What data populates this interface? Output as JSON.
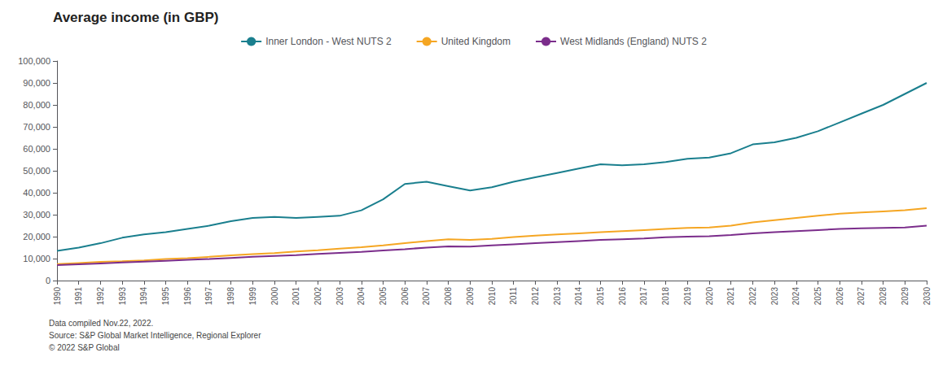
{
  "chart_data": {
    "type": "line",
    "title": "Average income (in GBP)",
    "x": [
      1990,
      1991,
      1992,
      1993,
      1994,
      1995,
      1996,
      1997,
      1998,
      1999,
      2000,
      2001,
      2002,
      2003,
      2004,
      2005,
      2006,
      2007,
      2008,
      2009,
      2010,
      2011,
      2012,
      2013,
      2014,
      2015,
      2016,
      2017,
      2018,
      2019,
      2020,
      2021,
      2022,
      2023,
      2024,
      2025,
      2026,
      2027,
      2028,
      2029,
      2030
    ],
    "xlim": [
      1990,
      2030
    ],
    "xticks": [
      1990,
      1991,
      1992,
      1993,
      1994,
      1995,
      1996,
      1997,
      1998,
      1999,
      2000,
      2001,
      2002,
      2003,
      2004,
      2005,
      2006,
      2007,
      2008,
      2009,
      2010,
      2011,
      2012,
      2013,
      2014,
      2015,
      2016,
      2017,
      2018,
      2019,
      2020,
      2021,
      2022,
      2023,
      2024,
      2025,
      2026,
      2027,
      2028,
      2029,
      2030
    ],
    "series": [
      {
        "name": "Inner London - West NUTS 2",
        "color": "#1a7f8e",
        "values": [
          13500,
          15000,
          17000,
          19500,
          21000,
          22000,
          23500,
          25000,
          27000,
          28500,
          29000,
          28500,
          29000,
          29500,
          32000,
          37000,
          44000,
          45000,
          43000,
          41000,
          42500,
          45000,
          47000,
          49000,
          51000,
          53000,
          52500,
          53000,
          54000,
          55500,
          56000,
          58000,
          62000,
          63000,
          65000,
          68000,
          72000,
          76000,
          80000,
          85000,
          90000
        ]
      },
      {
        "name": "United Kingdom",
        "color": "#f5a623",
        "values": [
          7500,
          8000,
          8500,
          8800,
          9200,
          9800,
          10200,
          10800,
          11500,
          12000,
          12500,
          13200,
          13800,
          14500,
          15200,
          16000,
          17000,
          18000,
          18800,
          18500,
          19000,
          19800,
          20500,
          21000,
          21500,
          22000,
          22500,
          23000,
          23500,
          24000,
          24200,
          25000,
          26500,
          27500,
          28500,
          29500,
          30500,
          31000,
          31500,
          32000,
          33000
        ]
      },
      {
        "name": "West Midlands (England) NUTS 2",
        "color": "#7b2d8b",
        "values": [
          7000,
          7400,
          7800,
          8200,
          8600,
          9000,
          9400,
          9800,
          10300,
          10800,
          11200,
          11600,
          12100,
          12600,
          13100,
          13700,
          14300,
          15000,
          15600,
          15500,
          16000,
          16500,
          17000,
          17500,
          18000,
          18500,
          18800,
          19200,
          19700,
          20000,
          20200,
          20700,
          21500,
          22000,
          22500,
          23000,
          23500,
          23800,
          24000,
          24200,
          25000
        ]
      }
    ],
    "ylim": [
      0,
      100000
    ],
    "yticks": [
      0,
      {
        "value": 10000,
        "label": "10,000"
      },
      {
        "value": 20000,
        "label": "20,000"
      },
      {
        "value": 30000,
        "label": "30,000"
      },
      {
        "value": 40000,
        "label": "40,000"
      },
      {
        "value": 50000,
        "label": "50,000"
      },
      {
        "value": 60000,
        "label": "60,000"
      },
      {
        "value": 70000,
        "label": "70,000"
      },
      {
        "value": 80000,
        "label": "80,000"
      },
      {
        "value": 90000,
        "label": "90,000"
      },
      {
        "value": 100000,
        "label": "100,000"
      }
    ],
    "grid": false,
    "legend": "top",
    "annotations": [
      "Data compiled Nov.22, 2022.",
      "Source: S&P Global Market Intelligence, Regional Explorer",
      "© 2022 S&P Global"
    ]
  }
}
